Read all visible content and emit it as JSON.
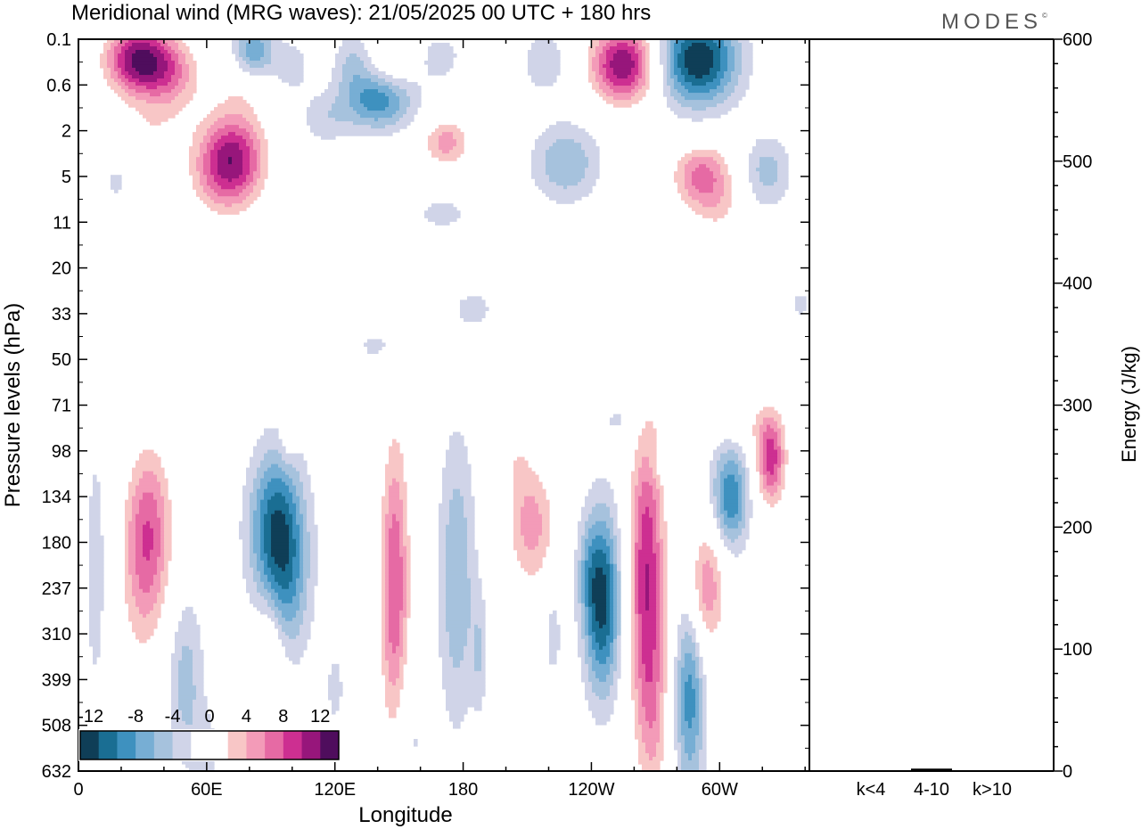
{
  "title": "Meridional wind (MRG waves):  21/05/2025  00 UTC  + 180 hrs",
  "brand": "MODES",
  "brand_mark": "©",
  "chart_data": [
    {
      "type": "heatmap",
      "title": "Meridional wind (MRG waves):  21/05/2025  00 UTC  + 180 hrs",
      "xlabel": "Longitude",
      "ylabel": "Pressure levels (hPa)",
      "x_tick_labels": [
        "0",
        "60E",
        "120E",
        "180",
        "120W",
        "60W"
      ],
      "x_tick_degrees": [
        0,
        60,
        120,
        180,
        240,
        300
      ],
      "xlim": [
        0,
        342
      ],
      "y_tick_labels": [
        "0.1",
        "0.6",
        "2",
        "5",
        "11",
        "20",
        "33",
        "50",
        "71",
        "98",
        "134",
        "180",
        "237",
        "310",
        "399",
        "508",
        "632"
      ],
      "y_scale": "model levels (pressure increases downward)",
      "colorbar": {
        "tick_labels": [
          "-12",
          "-8",
          "-4",
          "0",
          "4",
          "8",
          "12"
        ],
        "levels": [
          -14,
          -12,
          -10,
          -8,
          -6,
          -4,
          -2,
          2,
          4,
          6,
          8,
          10,
          12,
          14
        ],
        "colors": [
          "#0f3e57",
          "#1a6e93",
          "#3e91bf",
          "#77aed4",
          "#a6c2dd",
          "#d0d4e8",
          "#ffffff",
          "#ffffff",
          "#f8c6c6",
          "#f39bb8",
          "#e66aa4",
          "#cd2f91",
          "#97167b",
          "#4f0d5d"
        ],
        "placement": "bottom-left"
      },
      "features": [
        {
          "lon": 28,
          "level": 0.45,
          "value": 14,
          "spread_lon": 11,
          "spread_level": 0.55
        },
        {
          "lon": 44,
          "level": 0.8,
          "value": 6,
          "spread_lon": 10,
          "spread_level": 0.6
        },
        {
          "lon": 77,
          "level": 1.0,
          "value": 3,
          "spread_lon": 9,
          "spread_level": 0.5
        },
        {
          "lon": 82,
          "level": 0.3,
          "value": -8,
          "spread_lon": 7,
          "spread_level": 0.45
        },
        {
          "lon": 100,
          "level": 0.6,
          "value": -3,
          "spread_lon": 6,
          "spread_level": 0.45
        },
        {
          "lon": 128,
          "level": 0.5,
          "value": -4,
          "spread_lon": 6,
          "spread_level": 0.45
        },
        {
          "lon": 148,
          "level": 0.45,
          "value": 3,
          "spread_lon": 6,
          "spread_level": 0.4
        },
        {
          "lon": 170,
          "level": 0.4,
          "value": -3,
          "spread_lon": 8,
          "spread_level": 0.4
        },
        {
          "lon": 190,
          "level": 0.8,
          "value": 3,
          "spread_lon": 7,
          "spread_level": 0.45
        },
        {
          "lon": 218,
          "level": 0.5,
          "value": -4,
          "spread_lon": 7,
          "spread_level": 0.45
        },
        {
          "lon": 255,
          "level": 0.55,
          "value": 14,
          "spread_lon": 11,
          "spread_level": 0.6
        },
        {
          "lon": 290,
          "level": 0.45,
          "value": -14,
          "spread_lon": 13,
          "spread_level": 0.7
        },
        {
          "lon": 330,
          "level": 0.5,
          "value": 3,
          "spread_lon": 6,
          "spread_level": 0.4
        },
        {
          "lon": 140,
          "level": 1.35,
          "value": -9,
          "spread_lon": 12,
          "spread_level": 0.45
        },
        {
          "lon": 115,
          "level": 1.75,
          "value": -3,
          "spread_lon": 8,
          "spread_level": 0.4
        },
        {
          "lon": 172,
          "level": 2.25,
          "value": 7,
          "spread_lon": 8,
          "spread_level": 0.4
        },
        {
          "lon": 32,
          "level": 2.05,
          "value": 3,
          "spread_lon": 12,
          "spread_level": 0.45
        },
        {
          "lon": 72,
          "level": 2.6,
          "value": 12,
          "spread_lon": 11,
          "spread_level": 0.7
        },
        {
          "lon": 65,
          "level": 3.1,
          "value": 3,
          "spread_lon": 12,
          "spread_level": 0.7
        },
        {
          "lon": 228,
          "level": 2.7,
          "value": -6,
          "spread_lon": 11,
          "spread_level": 0.6
        },
        {
          "lon": 292,
          "level": 3.0,
          "value": 9,
          "spread_lon": 10,
          "spread_level": 0.5
        },
        {
          "lon": 322,
          "level": 2.9,
          "value": -5,
          "spread_lon": 8,
          "spread_level": 0.55
        },
        {
          "lon": 300,
          "level": 3.8,
          "value": 3,
          "spread_lon": 9,
          "spread_level": 0.4
        },
        {
          "lon": 18,
          "level": 3.1,
          "value": -2.5,
          "spread_lon": 5,
          "spread_level": 0.35
        },
        {
          "lon": 170,
          "level": 3.8,
          "value": -2.5,
          "spread_lon": 12,
          "spread_level": 0.35
        },
        {
          "lon": 55,
          "level": 4.2,
          "value": -2.5,
          "spread_lon": 6,
          "spread_level": 0.25
        },
        {
          "lon": 90,
          "level": 4.2,
          "value": 2.5,
          "spread_lon": 4,
          "spread_level": 0.25
        },
        {
          "lon": 185,
          "level": 5.9,
          "value": -2.5,
          "spread_lon": 9,
          "spread_level": 0.4
        },
        {
          "lon": 230,
          "level": 5.7,
          "value": 2.5,
          "spread_lon": 9,
          "spread_level": 0.4
        },
        {
          "lon": 28,
          "level": 5.9,
          "value": 2.5,
          "spread_lon": 5,
          "spread_level": 0.45
        },
        {
          "lon": 338,
          "level": 5.8,
          "value": -2.5,
          "spread_lon": 4,
          "spread_level": 0.3
        },
        {
          "lon": 142,
          "level": 6.7,
          "value": -2.5,
          "spread_lon": 12,
          "spread_level": 0.35
        },
        {
          "lon": 310,
          "level": 7.0,
          "value": 2.5,
          "spread_lon": 8,
          "spread_level": 0.55
        },
        {
          "lon": 258,
          "level": 7.35,
          "value": -2.5,
          "spread_lon": 5,
          "spread_level": 0.3
        },
        {
          "lon": 255,
          "level": 8.3,
          "value": -2.5,
          "spread_lon": 8,
          "spread_level": 0.4
        },
        {
          "lon": 315,
          "level": 8.4,
          "value": 2.5,
          "spread_lon": 10,
          "spread_level": 0.4
        },
        {
          "lon": 324,
          "level": 9.2,
          "value": 11,
          "spread_lon": 5,
          "spread_level": 0.7
        },
        {
          "lon": 305,
          "level": 10.0,
          "value": -10,
          "spread_lon": 6,
          "spread_level": 0.8
        },
        {
          "lon": 276,
          "level": 9.3,
          "value": -2.5,
          "spread_lon": 8,
          "spread_level": 0.3
        },
        {
          "lon": 33,
          "level": 10.6,
          "value": 8,
          "spread_lon": 8,
          "spread_level": 1.3
        },
        {
          "lon": 30,
          "level": 12.1,
          "value": 4,
          "spread_lon": 8,
          "spread_level": 1.4
        },
        {
          "lon": 93,
          "level": 10.7,
          "value": -12,
          "spread_lon": 9,
          "spread_level": 1.2
        },
        {
          "lon": 97,
          "level": 12.3,
          "value": -5,
          "spread_lon": 8,
          "spread_level": 1.1
        },
        {
          "lon": 98,
          "level": 8.8,
          "value": 2.5,
          "spread_lon": 3,
          "spread_level": 0.4
        },
        {
          "lon": 148,
          "level": 12.0,
          "value": 10,
          "spread_lon": 5,
          "spread_level": 2.4
        },
        {
          "lon": 177,
          "level": 11.8,
          "value": -6,
          "spread_lon": 6,
          "spread_level": 2.2
        },
        {
          "lon": 212,
          "level": 10.6,
          "value": 7,
          "spread_lon": 8,
          "spread_level": 1.0
        },
        {
          "lon": 205,
          "level": 9.3,
          "value": 2.5,
          "spread_lon": 4,
          "spread_level": 0.5
        },
        {
          "lon": 245,
          "level": 12.3,
          "value": -13,
          "spread_lon": 6,
          "spread_level": 1.4
        },
        {
          "lon": 238,
          "level": 11.6,
          "value": -3,
          "spread_lon": 4,
          "spread_level": 0.8
        },
        {
          "lon": 266,
          "level": 11.8,
          "value": 12,
          "spread_lon": 6,
          "spread_level": 2.6
        },
        {
          "lon": 294,
          "level": 12.0,
          "value": 8,
          "spread_lon": 6,
          "spread_level": 1.0
        },
        {
          "lon": 286,
          "level": 14.4,
          "value": -9,
          "spread_lon": 5,
          "spread_level": 1.5
        },
        {
          "lon": 50,
          "level": 14.0,
          "value": -5,
          "spread_lon": 6,
          "spread_level": 1.3
        },
        {
          "lon": 8,
          "level": 11.6,
          "value": -4,
          "spread_lon": 3,
          "spread_level": 1.8
        },
        {
          "lon": 90,
          "level": 13.4,
          "value": 5,
          "spread_lon": 5,
          "spread_level": 1.1
        },
        {
          "lon": 200,
          "level": 14.3,
          "value": 3,
          "spread_lon": 7,
          "spread_level": 1.4
        },
        {
          "lon": 188,
          "level": 13.5,
          "value": -4,
          "spread_lon": 3,
          "spread_level": 1.0
        },
        {
          "lon": 222,
          "level": 13.0,
          "value": -3,
          "spread_lon": 3,
          "spread_level": 0.8
        },
        {
          "lon": 270,
          "level": 15.0,
          "value": 3,
          "spread_lon": 5,
          "spread_level": 1.4
        },
        {
          "lon": 318,
          "level": 15.0,
          "value": 3,
          "spread_lon": 6,
          "spread_level": 1.6
        },
        {
          "lon": 155,
          "level": 15.2,
          "value": -3,
          "spread_lon": 5,
          "spread_level": 1.2
        },
        {
          "lon": 120,
          "level": 14.2,
          "value": -2.5,
          "spread_lon": 4,
          "spread_level": 0.8
        },
        {
          "lon": 60,
          "level": 15.6,
          "value": -2.5,
          "spread_lon": 5,
          "spread_level": 0.7
        }
      ]
    },
    {
      "type": "bar",
      "categories": [
        "k<4",
        "4-10",
        "k>10"
      ],
      "values": [
        0,
        2,
        0
      ],
      "ylabel": "Energy (J/kg)",
      "ylim": [
        0,
        600
      ],
      "y_tick_labels": [
        "0",
        "100",
        "200",
        "300",
        "400",
        "500",
        "600"
      ]
    }
  ]
}
